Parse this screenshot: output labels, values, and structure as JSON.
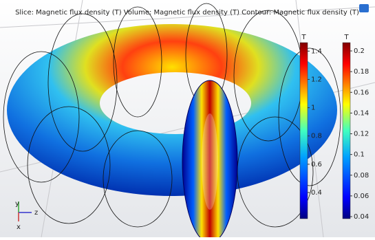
{
  "title": "Slice: Magnetic flux density (T) Volume: Magnetic flux density (T) Contour: Magnetic flux density (T)",
  "axes": {
    "y": "y",
    "z": "z",
    "x": "x"
  },
  "colorbars": [
    {
      "unit": "T",
      "range": [
        0.215,
        1.46
      ],
      "ticks": [
        1.4,
        1.2,
        1,
        0.8,
        0.6,
        0.4
      ]
    },
    {
      "unit": "T",
      "range": [
        0.038,
        0.208
      ],
      "ticks": [
        0.2,
        0.18,
        0.16,
        0.14,
        0.12,
        0.1,
        0.08,
        0.06,
        0.04
      ]
    }
  ]
}
